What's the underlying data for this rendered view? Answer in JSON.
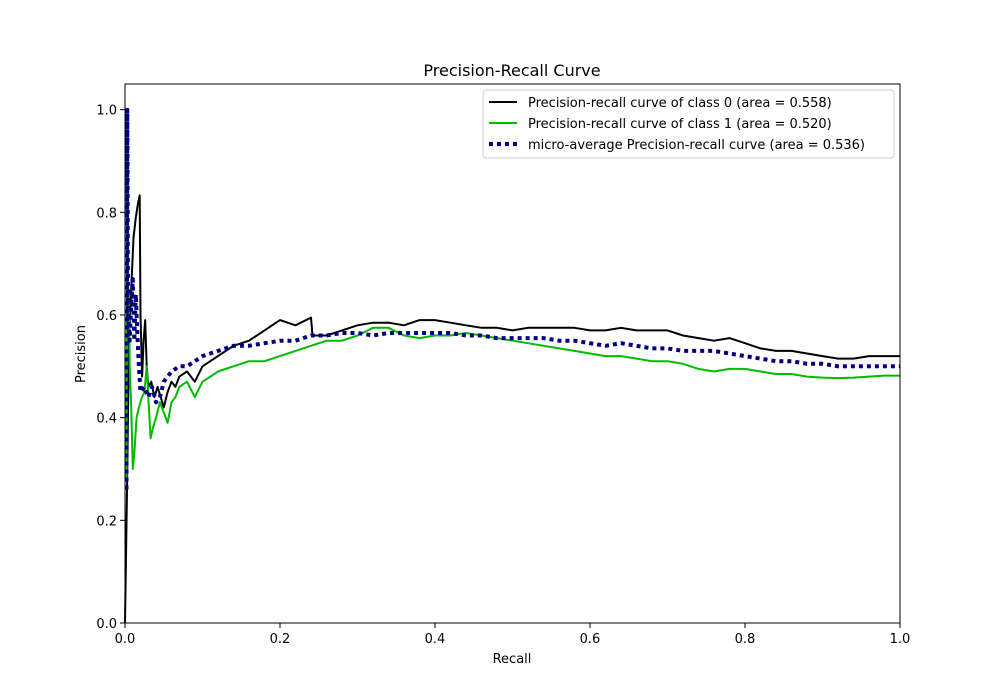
{
  "chart_data": {
    "type": "line",
    "title": "Precision-Recall Curve",
    "xlabel": "Recall",
    "ylabel": "Precision",
    "xlim": [
      0.0,
      1.0
    ],
    "ylim": [
      0.0,
      1.05
    ],
    "xticks": [
      "0.0",
      "0.2",
      "0.4",
      "0.6",
      "0.8",
      "1.0"
    ],
    "yticks": [
      "0.0",
      "0.2",
      "0.4",
      "0.6",
      "0.8",
      "1.0"
    ],
    "grid": false,
    "legend_position": "top-right",
    "series": [
      {
        "name": "Precision-recall curve of class 0 (area = 0.558)",
        "color": "#000000",
        "style": "solid",
        "points": [
          [
            0.0,
            0.0
          ],
          [
            0.003,
            0.3
          ],
          [
            0.005,
            0.55
          ],
          [
            0.008,
            0.65
          ],
          [
            0.011,
            0.75
          ],
          [
            0.014,
            0.79
          ],
          [
            0.017,
            0.82
          ],
          [
            0.019,
            0.833
          ],
          [
            0.02,
            0.6
          ],
          [
            0.022,
            0.48
          ],
          [
            0.024,
            0.55
          ],
          [
            0.026,
            0.59
          ],
          [
            0.028,
            0.5
          ],
          [
            0.03,
            0.46
          ],
          [
            0.034,
            0.47
          ],
          [
            0.038,
            0.44
          ],
          [
            0.042,
            0.46
          ],
          [
            0.046,
            0.44
          ],
          [
            0.05,
            0.42
          ],
          [
            0.055,
            0.45
          ],
          [
            0.06,
            0.47
          ],
          [
            0.065,
            0.46
          ],
          [
            0.07,
            0.48
          ],
          [
            0.08,
            0.49
          ],
          [
            0.09,
            0.47
          ],
          [
            0.1,
            0.5
          ],
          [
            0.12,
            0.52
          ],
          [
            0.14,
            0.54
          ],
          [
            0.16,
            0.55
          ],
          [
            0.18,
            0.57
          ],
          [
            0.2,
            0.59
          ],
          [
            0.22,
            0.58
          ],
          [
            0.24,
            0.595
          ],
          [
            0.242,
            0.56
          ],
          [
            0.26,
            0.56
          ],
          [
            0.28,
            0.57
          ],
          [
            0.3,
            0.58
          ],
          [
            0.32,
            0.585
          ],
          [
            0.34,
            0.585
          ],
          [
            0.36,
            0.58
          ],
          [
            0.38,
            0.59
          ],
          [
            0.4,
            0.59
          ],
          [
            0.42,
            0.585
          ],
          [
            0.44,
            0.58
          ],
          [
            0.46,
            0.575
          ],
          [
            0.48,
            0.575
          ],
          [
            0.5,
            0.57
          ],
          [
            0.52,
            0.575
          ],
          [
            0.54,
            0.575
          ],
          [
            0.56,
            0.575
          ],
          [
            0.58,
            0.575
          ],
          [
            0.6,
            0.57
          ],
          [
            0.62,
            0.57
          ],
          [
            0.64,
            0.575
          ],
          [
            0.66,
            0.57
          ],
          [
            0.68,
            0.57
          ],
          [
            0.7,
            0.57
          ],
          [
            0.72,
            0.56
          ],
          [
            0.74,
            0.555
          ],
          [
            0.76,
            0.55
          ],
          [
            0.78,
            0.555
          ],
          [
            0.8,
            0.545
          ],
          [
            0.82,
            0.535
          ],
          [
            0.84,
            0.53
          ],
          [
            0.86,
            0.53
          ],
          [
            0.88,
            0.525
          ],
          [
            0.9,
            0.52
          ],
          [
            0.92,
            0.515
          ],
          [
            0.94,
            0.515
          ],
          [
            0.96,
            0.52
          ],
          [
            0.98,
            0.52
          ],
          [
            1.0,
            0.52
          ]
        ]
      },
      {
        "name": "Precision-recall curve of class 1 (area = 0.520)",
        "color": "#00bb00",
        "style": "solid",
        "points": [
          [
            0.002,
            0.28
          ],
          [
            0.003,
            1.0
          ],
          [
            0.004,
            0.55
          ],
          [
            0.005,
            0.65
          ],
          [
            0.006,
            0.5
          ],
          [
            0.008,
            0.42
          ],
          [
            0.01,
            0.3
          ],
          [
            0.012,
            0.33
          ],
          [
            0.015,
            0.4
          ],
          [
            0.018,
            0.42
          ],
          [
            0.022,
            0.44
          ],
          [
            0.025,
            0.45
          ],
          [
            0.028,
            0.5
          ],
          [
            0.03,
            0.44
          ],
          [
            0.033,
            0.36
          ],
          [
            0.036,
            0.38
          ],
          [
            0.04,
            0.4
          ],
          [
            0.045,
            0.43
          ],
          [
            0.05,
            0.41
          ],
          [
            0.055,
            0.39
          ],
          [
            0.06,
            0.43
          ],
          [
            0.065,
            0.44
          ],
          [
            0.07,
            0.46
          ],
          [
            0.08,
            0.47
          ],
          [
            0.09,
            0.44
          ],
          [
            0.1,
            0.47
          ],
          [
            0.12,
            0.49
          ],
          [
            0.14,
            0.5
          ],
          [
            0.16,
            0.51
          ],
          [
            0.18,
            0.51
          ],
          [
            0.2,
            0.52
          ],
          [
            0.22,
            0.53
          ],
          [
            0.24,
            0.54
          ],
          [
            0.26,
            0.55
          ],
          [
            0.28,
            0.55
          ],
          [
            0.3,
            0.56
          ],
          [
            0.32,
            0.575
          ],
          [
            0.34,
            0.575
          ],
          [
            0.36,
            0.56
          ],
          [
            0.38,
            0.555
          ],
          [
            0.4,
            0.56
          ],
          [
            0.42,
            0.56
          ],
          [
            0.44,
            0.565
          ],
          [
            0.46,
            0.56
          ],
          [
            0.48,
            0.555
          ],
          [
            0.5,
            0.55
          ],
          [
            0.52,
            0.545
          ],
          [
            0.54,
            0.54
          ],
          [
            0.56,
            0.535
          ],
          [
            0.58,
            0.53
          ],
          [
            0.6,
            0.525
          ],
          [
            0.62,
            0.52
          ],
          [
            0.64,
            0.52
          ],
          [
            0.66,
            0.515
          ],
          [
            0.68,
            0.51
          ],
          [
            0.7,
            0.51
          ],
          [
            0.72,
            0.505
          ],
          [
            0.74,
            0.495
          ],
          [
            0.76,
            0.49
          ],
          [
            0.78,
            0.495
          ],
          [
            0.8,
            0.495
          ],
          [
            0.82,
            0.49
          ],
          [
            0.84,
            0.485
          ],
          [
            0.86,
            0.485
          ],
          [
            0.88,
            0.48
          ],
          [
            0.9,
            0.478
          ],
          [
            0.92,
            0.477
          ],
          [
            0.94,
            0.478
          ],
          [
            0.96,
            0.48
          ],
          [
            0.98,
            0.482
          ],
          [
            1.0,
            0.482
          ]
        ]
      },
      {
        "name": "micro-average Precision-recall curve (area = 0.536)",
        "color": "#000080",
        "style": "dotted",
        "points": [
          [
            0.002,
            0.26
          ],
          [
            0.003,
            1.0
          ],
          [
            0.004,
            0.6
          ],
          [
            0.006,
            0.55
          ],
          [
            0.008,
            0.62
          ],
          [
            0.01,
            0.67
          ],
          [
            0.012,
            0.55
          ],
          [
            0.014,
            0.64
          ],
          [
            0.016,
            0.56
          ],
          [
            0.018,
            0.5
          ],
          [
            0.02,
            0.45
          ],
          [
            0.025,
            0.46
          ],
          [
            0.03,
            0.44
          ],
          [
            0.035,
            0.46
          ],
          [
            0.04,
            0.43
          ],
          [
            0.045,
            0.44
          ],
          [
            0.05,
            0.47
          ],
          [
            0.06,
            0.49
          ],
          [
            0.07,
            0.5
          ],
          [
            0.08,
            0.5
          ],
          [
            0.1,
            0.52
          ],
          [
            0.12,
            0.53
          ],
          [
            0.14,
            0.54
          ],
          [
            0.16,
            0.54
          ],
          [
            0.18,
            0.545
          ],
          [
            0.2,
            0.55
          ],
          [
            0.22,
            0.55
          ],
          [
            0.24,
            0.56
          ],
          [
            0.26,
            0.56
          ],
          [
            0.28,
            0.565
          ],
          [
            0.3,
            0.565
          ],
          [
            0.32,
            0.56
          ],
          [
            0.34,
            0.565
          ],
          [
            0.36,
            0.565
          ],
          [
            0.38,
            0.565
          ],
          [
            0.4,
            0.565
          ],
          [
            0.42,
            0.565
          ],
          [
            0.44,
            0.56
          ],
          [
            0.46,
            0.56
          ],
          [
            0.48,
            0.555
          ],
          [
            0.5,
            0.555
          ],
          [
            0.52,
            0.555
          ],
          [
            0.54,
            0.555
          ],
          [
            0.56,
            0.55
          ],
          [
            0.58,
            0.55
          ],
          [
            0.6,
            0.545
          ],
          [
            0.62,
            0.54
          ],
          [
            0.64,
            0.545
          ],
          [
            0.66,
            0.54
          ],
          [
            0.68,
            0.535
          ],
          [
            0.7,
            0.535
          ],
          [
            0.72,
            0.53
          ],
          [
            0.74,
            0.53
          ],
          [
            0.76,
            0.53
          ],
          [
            0.78,
            0.525
          ],
          [
            0.8,
            0.52
          ],
          [
            0.82,
            0.515
          ],
          [
            0.84,
            0.51
          ],
          [
            0.86,
            0.51
          ],
          [
            0.88,
            0.505
          ],
          [
            0.9,
            0.505
          ],
          [
            0.92,
            0.5
          ],
          [
            0.94,
            0.5
          ],
          [
            0.96,
            0.5
          ],
          [
            0.98,
            0.5
          ],
          [
            1.0,
            0.5
          ]
        ]
      }
    ]
  }
}
